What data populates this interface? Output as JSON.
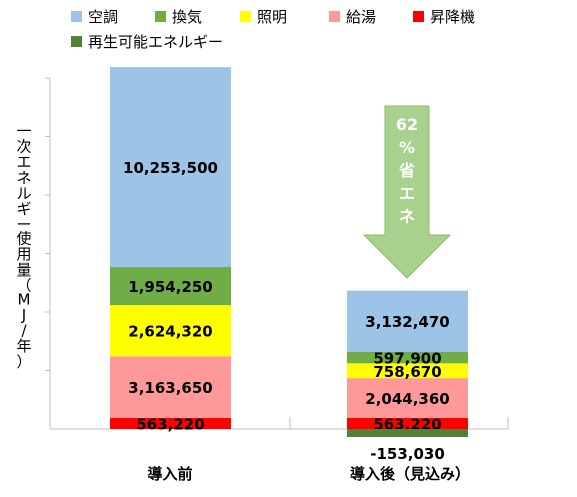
{
  "chart_data": {
    "type": "bar",
    "stacked": true,
    "categories": [
      "導入前",
      "導入後（見込み）"
    ],
    "series": [
      {
        "name": "空調",
        "color": "#9DC3E6",
        "values": [
          10253500,
          3132470
        ],
        "labels": [
          "10,253,500",
          "3,132,470"
        ]
      },
      {
        "name": "換気",
        "color": "#70AD47",
        "values": [
          1954250,
          597900
        ],
        "labels": [
          "1,954,250",
          "597,900"
        ]
      },
      {
        "name": "照明",
        "color": "#FFFF00",
        "values": [
          2624320,
          758670
        ],
        "labels": [
          "2,624,320",
          "758,670"
        ]
      },
      {
        "name": "給湯",
        "color": "#FF9999",
        "values": [
          3163650,
          2044360
        ],
        "labels": [
          "3,163,650",
          "2,044,360"
        ]
      },
      {
        "name": "昇降機",
        "color": "#FF0000",
        "values": [
          563220,
          563220
        ],
        "labels": [
          "563,220",
          "563,220"
        ]
      },
      {
        "name": "再生可能エネルギー",
        "color": "#548235",
        "values": [
          0,
          -153030
        ],
        "labels": [
          "",
          "-153,030"
        ]
      }
    ],
    "ylabel": "一次エネルギー使用量（MJ/年）",
    "annotation": {
      "lines": [
        "62",
        "%",
        "省",
        "エ",
        "ネ"
      ],
      "color": "#A9D18E"
    },
    "legend": "top"
  }
}
